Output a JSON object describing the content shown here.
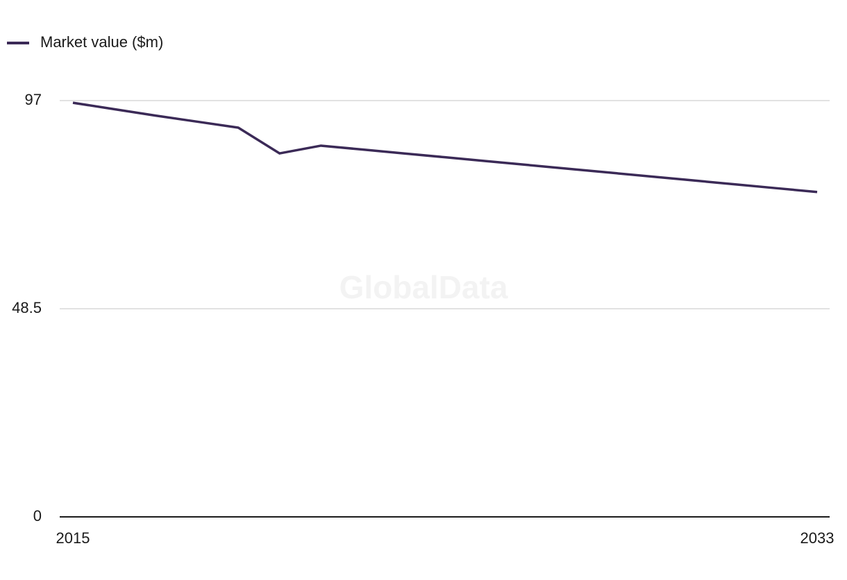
{
  "chart_data": {
    "type": "line",
    "watermark": "GlobalData",
    "x": [
      2015,
      2016,
      2017,
      2018,
      2019,
      2020,
      2021,
      2022,
      2023,
      2024,
      2025,
      2026,
      2027,
      2028,
      2029,
      2030,
      2031,
      2032,
      2033
    ],
    "series": [
      {
        "name": "Market value ($m)",
        "color": "#3b2a57",
        "values": [
          96.5,
          95.0,
          93.5,
          92.1,
          90.7,
          84.7,
          86.5,
          85.6,
          84.7,
          83.8,
          82.9,
          82.0,
          81.1,
          80.2,
          79.3,
          78.4,
          77.5,
          76.6,
          75.7
        ]
      }
    ],
    "xlim": [
      2015,
      2033
    ],
    "xticks": [
      2015,
      2033
    ],
    "ylim": [
      0,
      97
    ],
    "yticks": [
      0,
      48.5,
      97
    ],
    "grid": true,
    "legend": "top-left"
  }
}
